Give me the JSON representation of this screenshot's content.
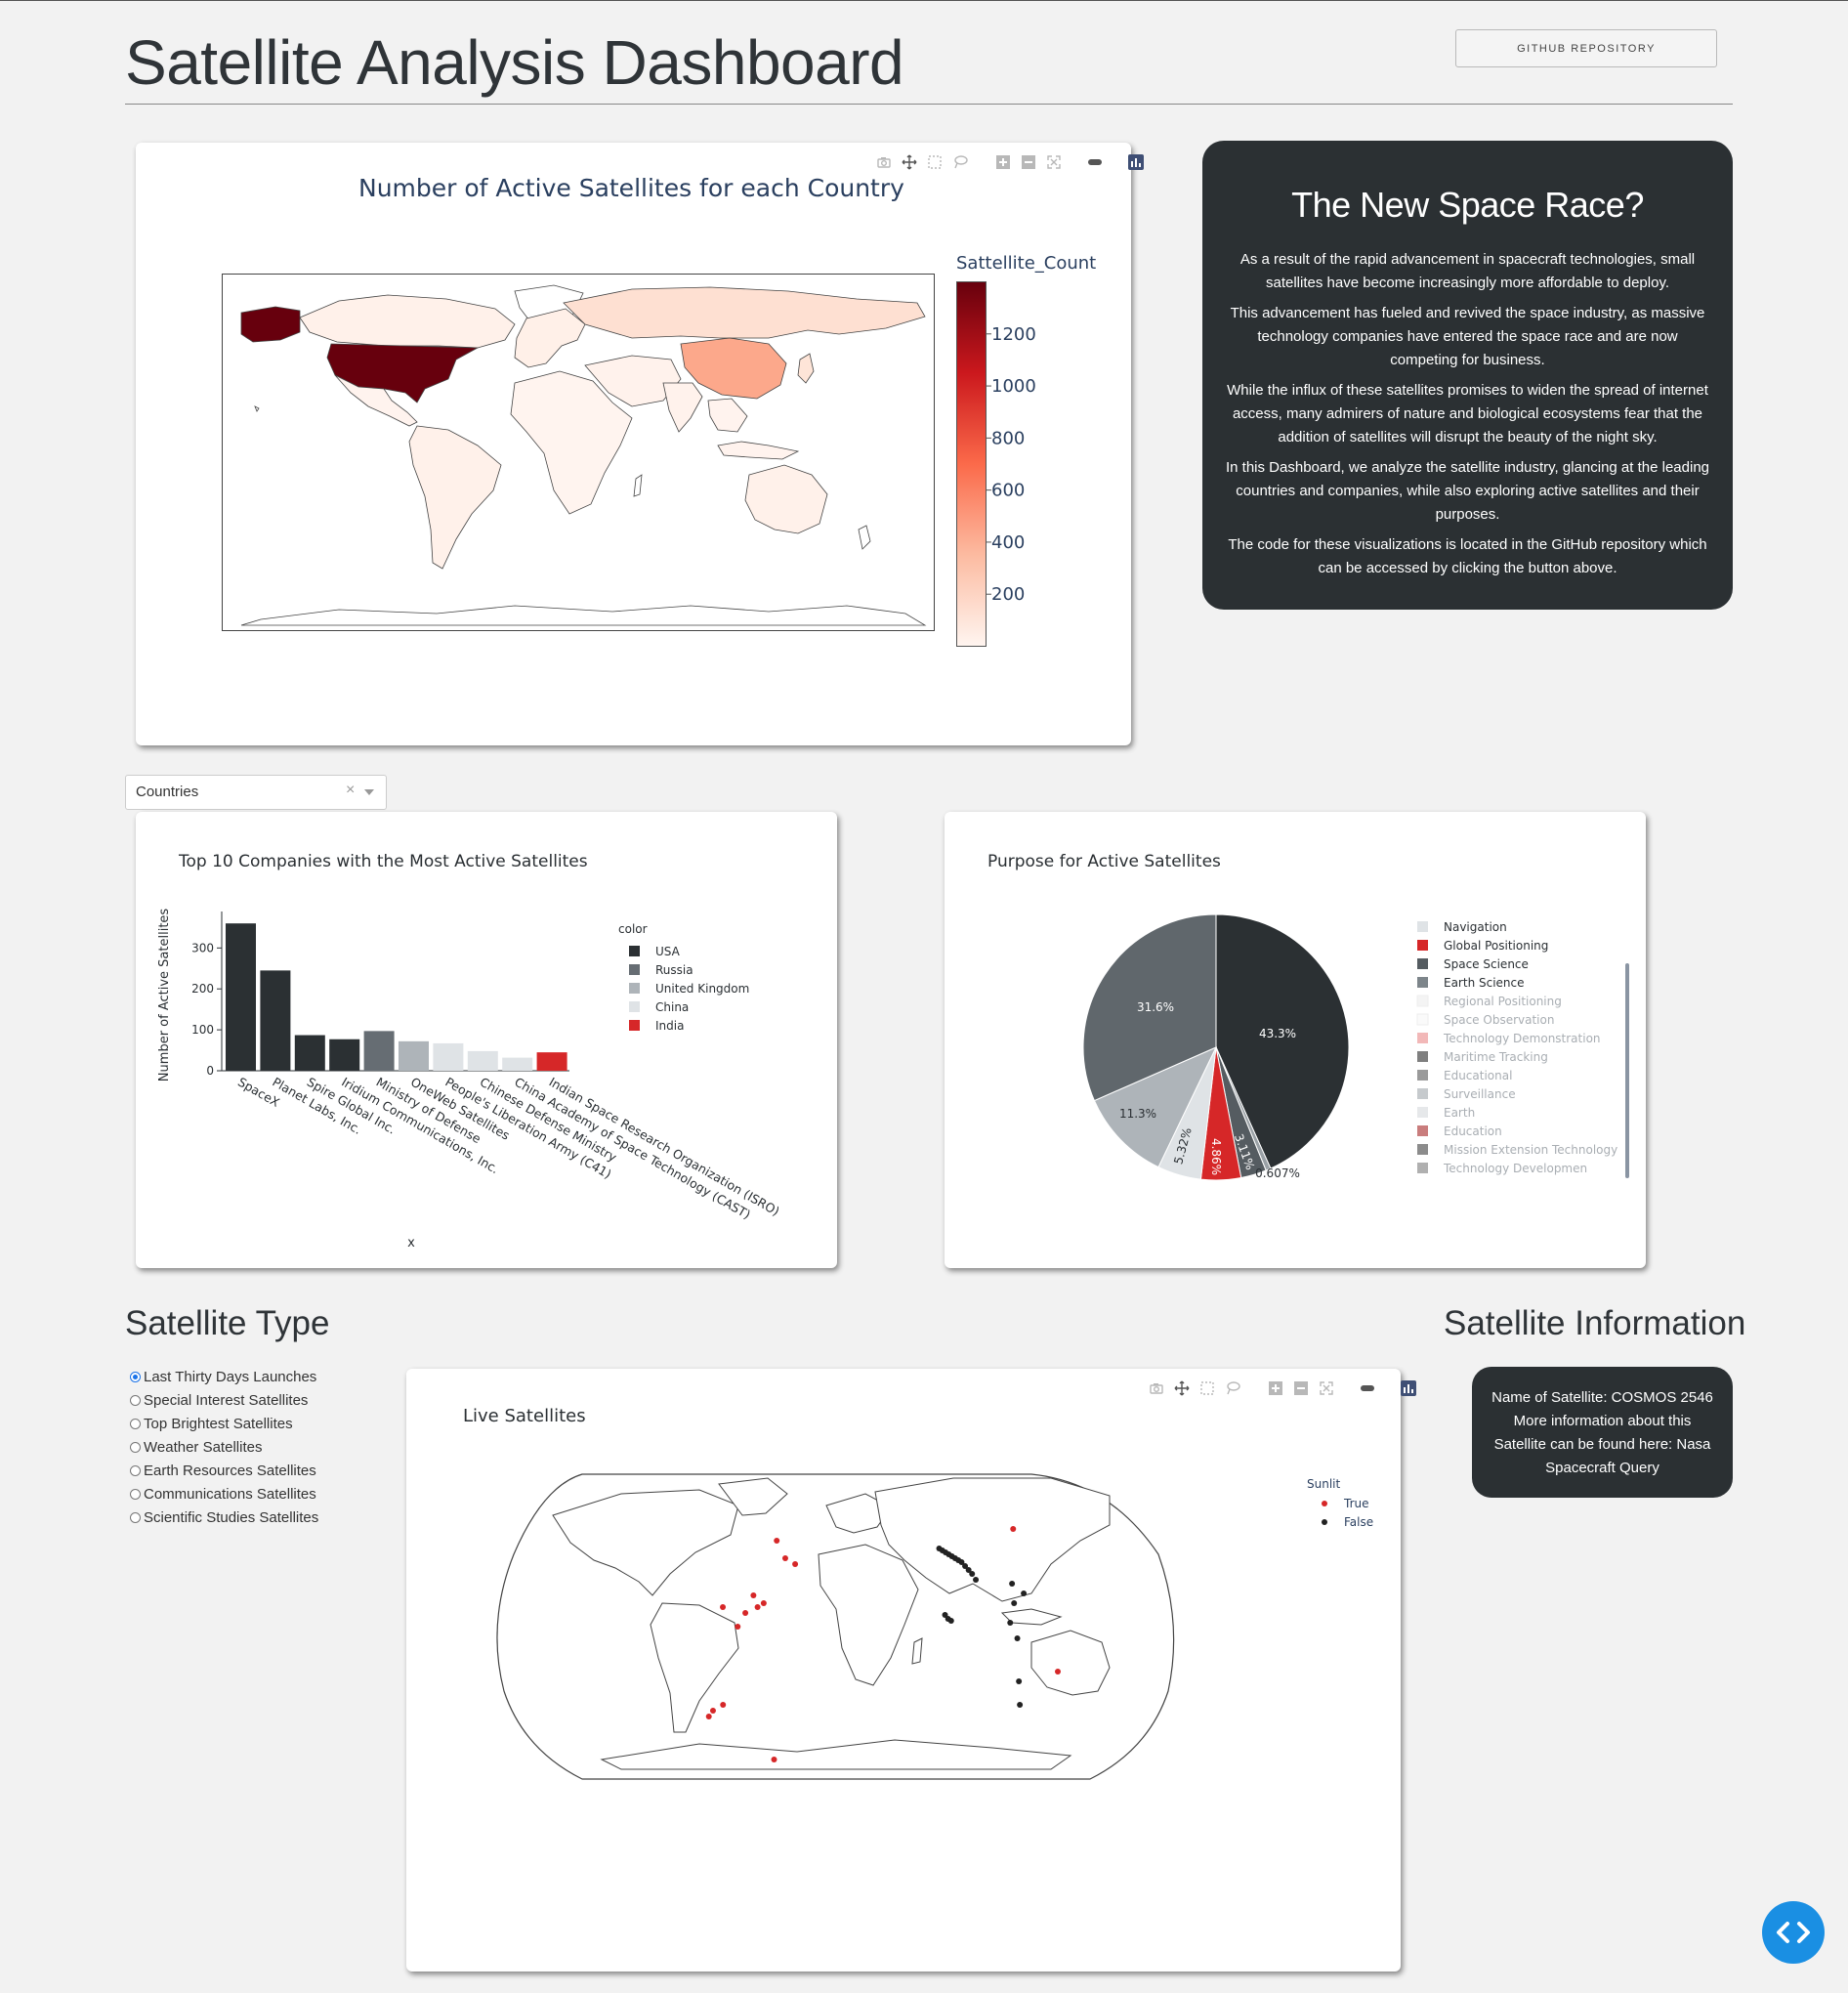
{
  "header": {
    "title": "Satellite Analysis Dashboard",
    "github_button": "GITHUB REPOSITORY"
  },
  "colors": {
    "background": "#f2f2f2",
    "dark_card": "#2b3033",
    "accent_red": "#d62728",
    "us_fill": "#67000d",
    "china_fill": "#fca88b",
    "fab_blue": "#1a8fe3"
  },
  "info_card": {
    "title": "The New Space Race?",
    "paragraphs": [
      "As a result of the rapid advancement in spacecraft technologies, small satellites have become increasingly more affordable to deploy.",
      "This advancement has fueled and revived the space industry, as massive technology companies have entered the space race and are now competing for business.",
      "While the influx of these satellites promises to widen the spread of internet access, many admirers of nature and biological ecosystems fear that the addition of satellites will disrupt the beauty of the night sky.",
      "In this Dashboard, we analyze the satellite industry, glancing at the leading countries and companies, while also exploring active satellites and their purposes.",
      "The code for these visualizations is located in the GitHub repository which can be accessed by clicking the button above."
    ]
  },
  "dropdown": {
    "value": "Countries",
    "clear": "×"
  },
  "satellite_type": {
    "heading": "Satellite Type",
    "options": [
      "Last Thirty Days Launches",
      "Special Interest Satellites",
      "Top Brightest Satellites",
      "Weather Satellites",
      "Earth Resources Satellites",
      "Communications Satellites",
      "Scientific Studies Satellites"
    ],
    "selected": "Last Thirty Days Launches"
  },
  "satellite_info": {
    "heading": "Satellite Information",
    "text": "Name of Satellite: COSMOS 2546 More information about this Satellite can be found here: Nasa Spacecraft Query"
  },
  "chart_data": [
    {
      "type": "choropleth",
      "title": "Number of Active Satellites for each Country",
      "colorbar_title": "Sattellite_Count",
      "colorbar_ticks": [
        "1200",
        "1000",
        "800",
        "600",
        "400",
        "200"
      ],
      "colorbar_range": [
        0,
        1400
      ],
      "highlighted": [
        {
          "country": "USA",
          "approx_value": 1400
        },
        {
          "country": "China",
          "approx_value": 400
        }
      ],
      "colorscale": "Reds"
    },
    {
      "type": "bar",
      "title": "Top 10 Companies with the Most Active Satellites",
      "xlabel": "x",
      "ylabel": "Number of Active Satellites",
      "ylim": [
        0,
        370
      ],
      "yticks": [
        "0",
        "100",
        "200",
        "300"
      ],
      "legend_title": "color",
      "legend": [
        {
          "name": "USA",
          "color": "#2b3033"
        },
        {
          "name": "Russia",
          "color": "#666d73"
        },
        {
          "name": "United Kingdom",
          "color": "#aeb4b9"
        },
        {
          "name": "China",
          "color": "#dfe3e6"
        },
        {
          "name": "India",
          "color": "#d62728"
        }
      ],
      "categories": [
        "SpaceX",
        "Planet Labs, Inc.",
        "Spire Global Inc.",
        "Iridium Communications, Inc.",
        "Ministry of Defense",
        "OneWeb Satellites",
        "People's Liberation Army (C41)",
        "Chinese Defense Ministry",
        "China Academy of Space Technology (CAST)",
        "Indian Space Research Organization (ISRO)"
      ],
      "values": [
        360,
        245,
        87,
        77,
        97,
        72,
        67,
        48,
        32,
        45
      ],
      "bar_colors": [
        "#2b3033",
        "#2b3033",
        "#2b3033",
        "#2b3033",
        "#666d73",
        "#aeb4b9",
        "#dfe3e6",
        "#dfe3e6",
        "#dfe3e6",
        "#d62728"
      ]
    },
    {
      "type": "pie",
      "title": "Purpose for Active Satellites",
      "slices": [
        {
          "label": "43.3%",
          "value": 43.3,
          "color": "#2b3033"
        },
        {
          "label": "0.607%",
          "value": 0.607,
          "color": "#9aa1a6"
        },
        {
          "label": "3.11%",
          "value": 3.11,
          "color": "#555c61"
        },
        {
          "label": "4.86%",
          "value": 4.86,
          "color": "#d62728"
        },
        {
          "label": "5.32%",
          "value": 5.32,
          "color": "#dfe3e6"
        },
        {
          "label": "11.3%",
          "value": 11.3,
          "color": "#aeb4b9"
        },
        {
          "label": "31.6%",
          "value": 31.6,
          "color": "#60676c"
        }
      ],
      "legend": [
        {
          "name": "Navigation",
          "color": "#dfe3e6",
          "faded": false
        },
        {
          "name": "Global Positioning",
          "color": "#d62728",
          "faded": false
        },
        {
          "name": "Space Science",
          "color": "#555c61",
          "faded": false
        },
        {
          "name": "Earth Science",
          "color": "#7d858a",
          "faded": false
        },
        {
          "name": "Regional Positioning",
          "color": "#f4f4f4",
          "faded": true
        },
        {
          "name": "Space Observation",
          "color": "#fafafa",
          "faded": true
        },
        {
          "name": "Technology Demonstration",
          "color": "#f2b8b8",
          "faded": true
        },
        {
          "name": "Maritime Tracking",
          "color": "#7f7f7f",
          "faded": true
        },
        {
          "name": "Educational",
          "color": "#9a9a9a",
          "faded": true
        },
        {
          "name": "Surveillance",
          "color": "#c6cacd",
          "faded": true
        },
        {
          "name": "Earth",
          "color": "#e6e8ea",
          "faded": true
        },
        {
          "name": "Education",
          "color": "#c97d7d",
          "faded": true
        },
        {
          "name": "Mission Extension Technology",
          "color": "#8c8c8c",
          "faded": true
        },
        {
          "name": "Technology Developmen",
          "color": "#b0b0b0",
          "faded": true
        }
      ]
    },
    {
      "type": "scatter",
      "title": "Live Satellites",
      "legend_title": "Sunlit",
      "legend": [
        {
          "name": "True",
          "color": "#d62728"
        },
        {
          "name": "False",
          "color": "#222222"
        }
      ],
      "points_true": [
        [
          -42,
          42
        ],
        [
          -35,
          33
        ],
        [
          -28,
          30
        ],
        [
          -55,
          14
        ],
        [
          -48,
          10
        ],
        [
          -52,
          8
        ],
        [
          -75,
          8
        ],
        [
          -60,
          5
        ],
        [
          -65,
          -2
        ],
        [
          -80,
          -42
        ],
        [
          -88,
          -45
        ],
        [
          -92,
          -48
        ],
        [
          -50,
          -70
        ],
        [
          128,
          48
        ],
        [
          150,
          -25
        ]
      ],
      "points_false": [
        [
          72,
          38
        ],
        [
          74,
          37
        ],
        [
          76,
          36
        ],
        [
          78,
          35
        ],
        [
          80,
          34
        ],
        [
          82,
          33
        ],
        [
          84,
          32
        ],
        [
          86,
          31
        ],
        [
          88,
          29
        ],
        [
          90,
          27
        ],
        [
          92,
          25
        ],
        [
          94,
          22
        ],
        [
          72,
          4
        ],
        [
          74,
          2
        ],
        [
          76,
          1
        ],
        [
          118,
          20
        ],
        [
          125,
          15
        ],
        [
          118,
          10
        ],
        [
          115,
          0
        ],
        [
          120,
          -8
        ],
        [
          125,
          -30
        ],
        [
          130,
          -42
        ]
      ]
    }
  ]
}
